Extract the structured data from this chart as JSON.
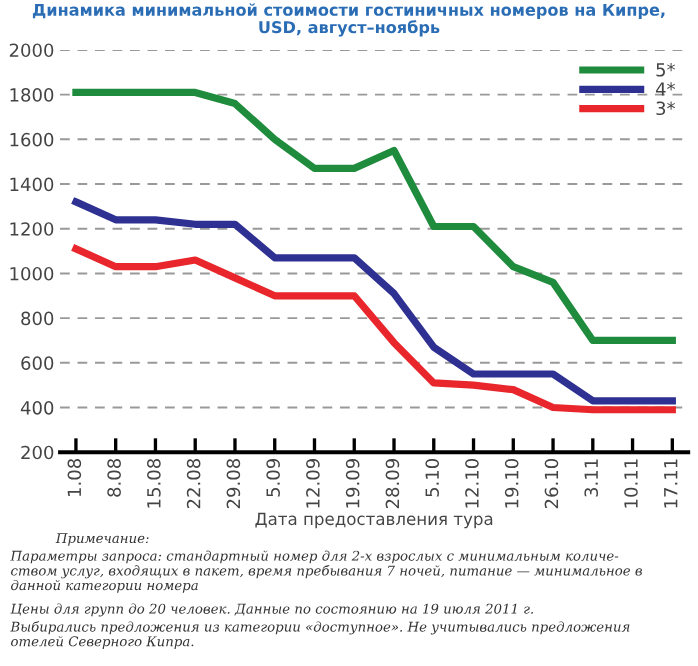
{
  "chart_data": {
    "type": "line",
    "title": "Динамика минимальной стоимости гостиничных номеров на Кипре,\nUSD, август–ноябрь",
    "xlabel": "Дата предоставления тура",
    "categories": [
      "1.08",
      "8.08",
      "15.08",
      "22.08",
      "29.08",
      "5.09",
      "12.09",
      "19.09",
      "28.09",
      "5.10",
      "12.10",
      "19.10",
      "26.10",
      "3.11",
      "10.11",
      "17.11"
    ],
    "series": [
      {
        "name": "5*",
        "color": "#1e8c3c",
        "values": [
          1810,
          1810,
          1810,
          1810,
          1760,
          1600,
          1470,
          1470,
          1550,
          1210,
          1210,
          1030,
          960,
          700,
          700,
          700
        ]
      },
      {
        "name": "4*",
        "color": "#2e3192",
        "values": [
          1320,
          1240,
          1240,
          1220,
          1220,
          1070,
          1070,
          1070,
          910,
          670,
          550,
          550,
          550,
          430,
          430,
          430
        ]
      },
      {
        "name": "3*",
        "color": "#e8262b",
        "values": [
          1110,
          1030,
          1030,
          1060,
          980,
          900,
          900,
          900,
          690,
          510,
          500,
          480,
          400,
          390,
          390,
          390
        ]
      }
    ],
    "ylim": [
      200,
      2000
    ],
    "yticks": [
      200,
      400,
      600,
      800,
      1000,
      1200,
      1400,
      1600,
      1800,
      2000
    ],
    "grid": "y",
    "legend": "top right",
    "marker": "none",
    "line_style": "solid",
    "annotations": [
      "Примечание:",
      "Параметры запроса: стандартный номер для 2-х взрослых с минимальным количе-\nством услуг, входящих в пакет, время пребывания 7 ночей, питание — минимальное в\nданной категории номера",
      "Цены для групп до 20 человек. Данные по состоянию на 19 июля 2011 г.",
      "Выбирались предложения из категории «доступное». Не учитывались предложения\nотелей Северного Кипра."
    ]
  }
}
